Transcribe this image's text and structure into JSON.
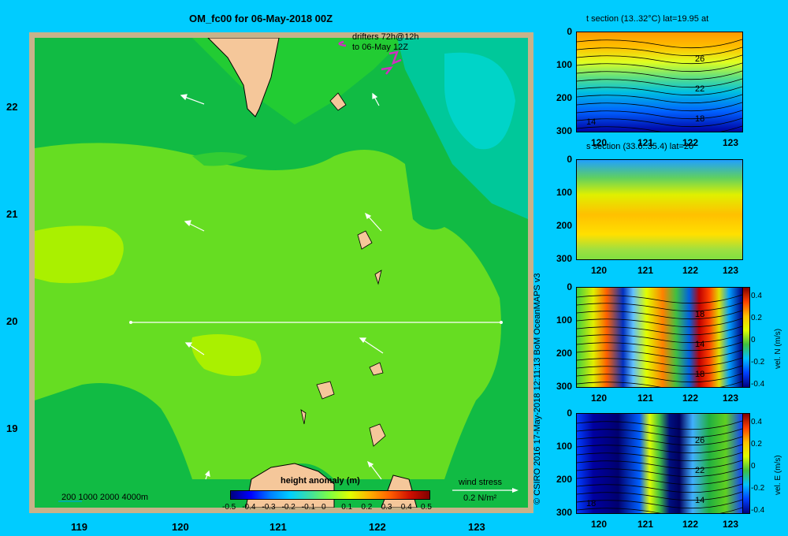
{
  "title": "OM_fc00 for 06-May-2018 00Z",
  "map": {
    "lon_ticks": [
      "119",
      "120",
      "121",
      "122",
      "123"
    ],
    "lat_ticks": [
      "22",
      "21",
      "20",
      "19"
    ],
    "drifters_line1": "drifters 72h@12h",
    "drifters_line2": "to 06-May 12Z",
    "depth_legend": "200  1000  2000  4000m",
    "colorbar_title": "height anomaly (m)",
    "colorbar_ticks": [
      "-0.5",
      "-0.4",
      "-0.3",
      "-0.2",
      "-0.1",
      "0",
      "0.1",
      "0.2",
      "0.3",
      "0.4",
      "0.5"
    ],
    "wind_label": "wind stress",
    "wind_scale": "0.2 N/m²"
  },
  "panels": [
    {
      "title": "t section (13..32°C) lat=19.95 at",
      "y_ticks": [
        "0",
        "100",
        "200",
        "300"
      ],
      "x_ticks": [
        "120",
        "121",
        "122",
        "123"
      ],
      "contour_labels": [
        "26",
        "22",
        "18",
        "14"
      ],
      "colorbar": null
    },
    {
      "title": "s section (33.6..35.4) lat=20",
      "y_ticks": [
        "0",
        "100",
        "200",
        "300"
      ],
      "x_ticks": [
        "120",
        "121",
        "122",
        "123"
      ],
      "contour_labels": [],
      "colorbar": null
    },
    {
      "title": "",
      "y_ticks": [
        "0",
        "100",
        "200",
        "300"
      ],
      "x_ticks": [
        "120",
        "121",
        "122",
        "123"
      ],
      "contour_labels": [
        "18",
        "14",
        "18"
      ],
      "colorbar": {
        "label": "vel. N (m/s)",
        "ticks": [
          "0.4",
          "0.2",
          "0",
          "-0.2",
          "-0.4"
        ]
      }
    },
    {
      "title": "",
      "y_ticks": [
        "0",
        "100",
        "200",
        "300"
      ],
      "x_ticks": [
        "120",
        "121",
        "122",
        "123"
      ],
      "contour_labels": [
        "26",
        "22",
        "14",
        "18"
      ],
      "colorbar": {
        "label": "vel. E (m/s)",
        "ticks": [
          "0.4",
          "0.2",
          "0",
          "-0.2",
          "-0.4"
        ]
      }
    }
  ],
  "credit": "© CSIRO 2016   17-May-2018 12:11:13 BoM OceanMAPS v3",
  "colors": {
    "background": "#00ccff",
    "frame": "#c8b28a",
    "land": "#f5c79a",
    "drifter": "#d030c0"
  }
}
